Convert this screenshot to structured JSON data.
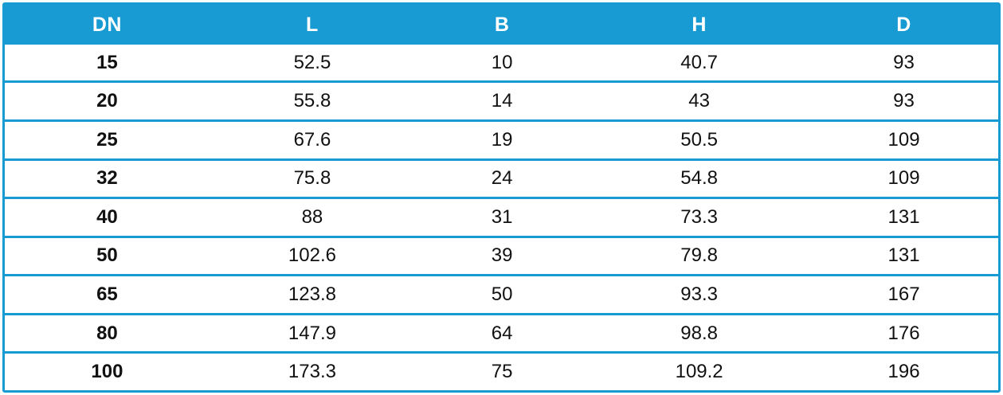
{
  "colors": {
    "accent": "#189ad3",
    "header_text": "#ffffff",
    "body_text": "#111111",
    "row_background": "#ffffff"
  },
  "chart_data": {
    "type": "table",
    "title": "",
    "columns": [
      "DN",
      "L",
      "B",
      "H",
      "D"
    ],
    "rows": [
      [
        "15",
        "52.5",
        "10",
        "40.7",
        "93"
      ],
      [
        "20",
        "55.8",
        "14",
        "43",
        "93"
      ],
      [
        "25",
        "67.6",
        "19",
        "50.5",
        "109"
      ],
      [
        "32",
        "75.8",
        "24",
        "54.8",
        "109"
      ],
      [
        "40",
        "88",
        "31",
        "73.3",
        "131"
      ],
      [
        "50",
        "102.6",
        "39",
        "79.8",
        "131"
      ],
      [
        "65",
        "123.8",
        "50",
        "93.3",
        "167"
      ],
      [
        "80",
        "147.9",
        "64",
        "98.8",
        "176"
      ],
      [
        "100",
        "173.3",
        "75",
        "109.2",
        "196"
      ]
    ],
    "layout_hints": {
      "header_background": "#189ad3",
      "first_column_bold": true,
      "cell_alignment": "center",
      "gridlines": "horizontal-only",
      "outer_border": true
    }
  }
}
